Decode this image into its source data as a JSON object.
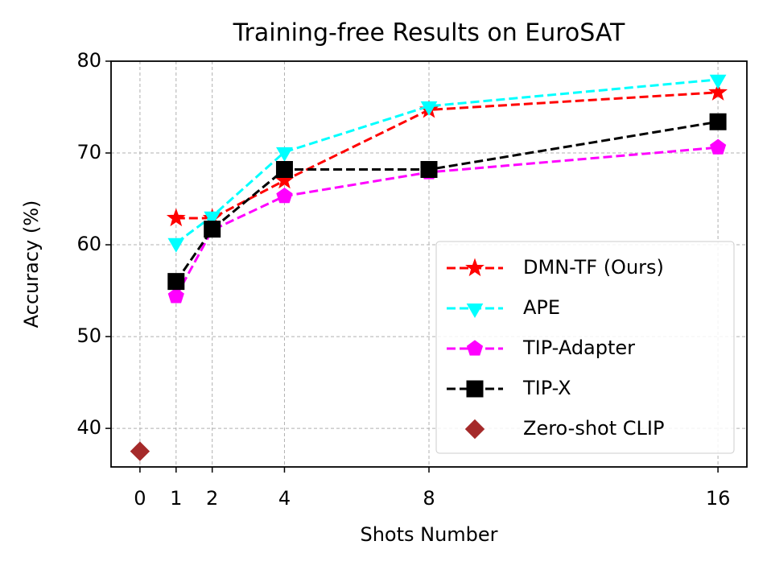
{
  "chart_data": {
    "type": "line",
    "title": "Training-free Results on EuroSAT",
    "x_label": "Shots Number",
    "y_label": "Accuracy (%)",
    "xlim": [
      -0.8,
      16.8
    ],
    "xticks": [
      0,
      1,
      2,
      4,
      8,
      16
    ],
    "ylim": [
      35.8,
      80
    ],
    "yticks": [
      40,
      50,
      60,
      70,
      80
    ],
    "grid": true,
    "legend": "lower right",
    "series": [
      {
        "name": "DMN-TF (Ours)",
        "color": "#ff0000",
        "marker": "star",
        "linestyle": "dashed",
        "x": [
          1,
          2,
          4,
          8,
          16
        ],
        "values": [
          62.9,
          62.9,
          67.0,
          74.7,
          76.6
        ]
      },
      {
        "name": "APE",
        "color": "#00ffff",
        "marker": "triangle-down",
        "linestyle": "dashed",
        "x": [
          1,
          2,
          4,
          8,
          16
        ],
        "values": [
          60.2,
          63.1,
          70.1,
          75.1,
          78.0
        ]
      },
      {
        "name": "TIP-Adapter",
        "color": "#ff00ff",
        "marker": "pentagon",
        "linestyle": "dashed",
        "x": [
          1,
          2,
          4,
          8,
          16
        ],
        "values": [
          54.4,
          61.6,
          65.3,
          67.9,
          70.6
        ]
      },
      {
        "name": "TIP-X",
        "color": "#000000",
        "marker": "square",
        "linestyle": "dashed",
        "x": [
          1,
          2,
          4,
          8,
          16
        ],
        "values": [
          56.0,
          61.7,
          68.2,
          68.2,
          73.4
        ]
      },
      {
        "name": "Zero-shot CLIP",
        "color": "#a52a2a",
        "marker": "diamond",
        "linestyle": "none",
        "x": [
          0
        ],
        "values": [
          37.5
        ]
      }
    ]
  }
}
